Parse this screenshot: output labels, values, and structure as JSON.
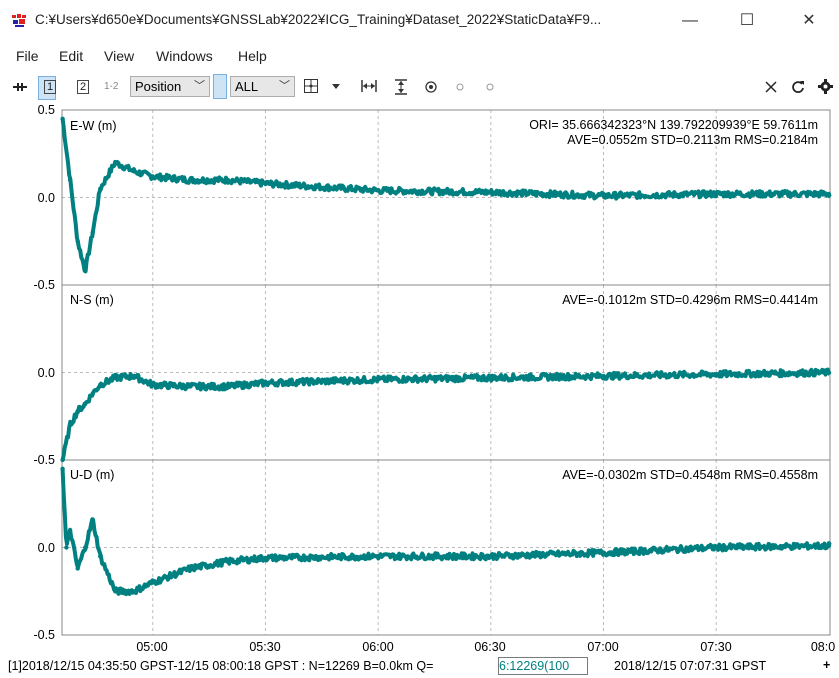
{
  "window": {
    "title": "C:¥Users¥d650e¥Documents¥GNSSLab¥2022¥ICG_Training¥Dataset_2022¥StaticData¥F9...",
    "minimize_glyph": "—",
    "maximize_glyph": "☐",
    "close_glyph": "✕"
  },
  "menu": [
    "File",
    "Edit",
    "View",
    "Windows",
    "Help"
  ],
  "toolbar": {
    "plot1": "1",
    "plot2": "2",
    "plot12": "1-2",
    "plot_type": "Position",
    "sat_filter": "ALL",
    "icons": [
      "pan-left-icon",
      "crosshair-icon",
      "dropdown-arrow-icon",
      "fit-horizontal-icon",
      "fit-vertical-icon",
      "center-icon",
      "dot-icon",
      "dot-icon",
      "close-icon",
      "refresh-icon",
      "settings-icon"
    ]
  },
  "colors": {
    "series": "#008080",
    "grid": "#bbbbbb",
    "frame": "#888888"
  },
  "panels": [
    {
      "label": "E-W (m)",
      "ori": "ORI= 35.666342323°N  139.792209939°E 59.7611m",
      "stats": "AVE=0.0552m STD=0.2113m RMS=0.2184m",
      "ytick_top": "0.5",
      "ytick_mid": "0.0",
      "ytick_bottom": "-0.5"
    },
    {
      "label": "N-S (m)",
      "stats": "AVE=-0.1012m STD=0.4296m RMS=0.4414m",
      "ytick_top": "",
      "ytick_mid": "0.0",
      "ytick_bottom": "-0.5"
    },
    {
      "label": "U-D (m)",
      "stats": "AVE=-0.0302m STD=0.4548m RMS=0.4558m",
      "ytick_top": "",
      "ytick_mid": "0.0",
      "ytick_bottom": "-0.5"
    }
  ],
  "xticks": [
    "05:00",
    "05:30",
    "06:00",
    "06:30",
    "07:00",
    "07:30",
    "08:0"
  ],
  "chart_data": {
    "type": "scatter",
    "x_range": [
      "2018/12/15 04:35:50 GPST",
      "2018/12/15 08:00:18 GPST"
    ],
    "ylim": [
      -0.5,
      0.5
    ],
    "series": [
      {
        "name": "E-W (m)",
        "x": [
          "04:36",
          "04:38",
          "04:40",
          "04:42",
          "04:44",
          "04:46",
          "04:50",
          "04:55",
          "05:00",
          "05:10",
          "05:20",
          "05:30",
          "06:00",
          "06:30",
          "07:00",
          "07:30",
          "08:00"
        ],
        "values": [
          0.45,
          0.1,
          -0.25,
          -0.42,
          -0.2,
          0.05,
          0.2,
          0.15,
          0.12,
          0.1,
          0.1,
          0.08,
          0.04,
          0.03,
          0.01,
          0.02,
          0.02
        ]
      },
      {
        "name": "N-S (m)",
        "x": [
          "04:36",
          "04:38",
          "04:40",
          "04:42",
          "04:44",
          "04:46",
          "04:50",
          "04:55",
          "05:00",
          "05:10",
          "05:20",
          "05:30",
          "06:00",
          "06:30",
          "07:00",
          "07:30",
          "08:00"
        ],
        "values": [
          -0.5,
          -0.3,
          -0.22,
          -0.18,
          -0.12,
          -0.07,
          -0.03,
          -0.02,
          -0.07,
          -0.08,
          -0.08,
          -0.06,
          -0.04,
          -0.03,
          -0.02,
          -0.01,
          0.0
        ]
      },
      {
        "name": "U-D (m)",
        "x": [
          "04:36",
          "04:37",
          "04:38",
          "04:40",
          "04:42",
          "04:44",
          "04:46",
          "04:50",
          "04:55",
          "05:00",
          "05:10",
          "05:20",
          "05:30",
          "06:00",
          "06:30",
          "07:00",
          "07:30",
          "08:00"
        ],
        "values": [
          0.45,
          0.0,
          0.1,
          -0.12,
          0.0,
          0.16,
          -0.05,
          -0.25,
          -0.25,
          -0.2,
          -0.12,
          -0.08,
          -0.06,
          -0.05,
          -0.05,
          -0.03,
          0.0,
          0.01
        ]
      }
    ]
  },
  "status": {
    "left": "[1]2018/12/15 04:35:50 GPST-12/15 08:00:18 GPST : N=12269 B=0.0km Q=",
    "q_value": " 6:12269(100",
    "cursor_time": "2018/12/15 07:07:31 GPST",
    "plus": "+"
  }
}
